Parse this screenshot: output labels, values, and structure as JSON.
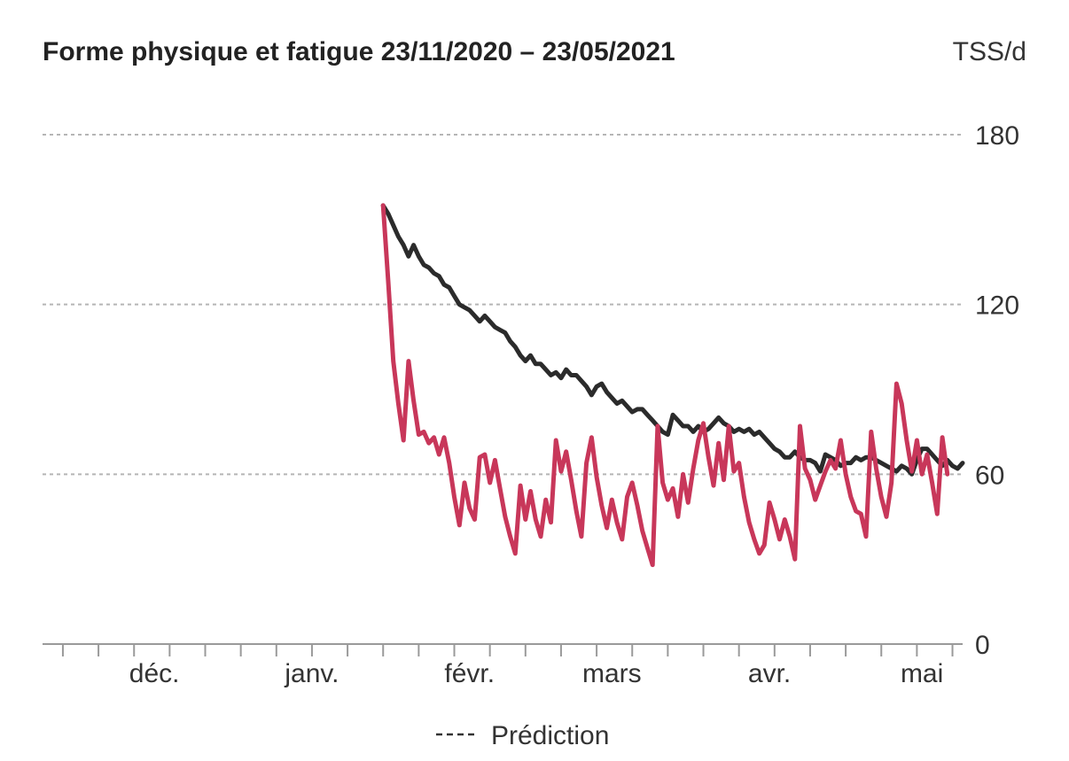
{
  "chart_data": {
    "type": "line",
    "title": "Forme physique et fatigue 23/11/2020 – 23/05/2021",
    "unit": "TSS/d",
    "x_range": [
      "2020-11-23",
      "2021-05-23"
    ],
    "ylim": [
      0,
      180
    ],
    "y_ticks": [
      0,
      60,
      120,
      180
    ],
    "grid": true,
    "month_labels": [
      {
        "label": "déc.",
        "date": "2020-12-15"
      },
      {
        "label": "janv.",
        "date": "2021-01-15"
      },
      {
        "label": "févr.",
        "date": "2021-02-15"
      },
      {
        "label": "mars",
        "date": "2021-03-15"
      },
      {
        "label": "avr.",
        "date": "2021-04-15"
      },
      {
        "label": "mai",
        "date": "2021-05-15"
      }
    ],
    "week_tick_dates": [
      "2020-11-27",
      "2020-12-04",
      "2020-12-11",
      "2020-12-18",
      "2020-12-25",
      "2021-01-01",
      "2021-01-08",
      "2021-01-15",
      "2021-01-22",
      "2021-01-29",
      "2021-02-05",
      "2021-02-12",
      "2021-02-19",
      "2021-02-26",
      "2021-03-05",
      "2021-03-12",
      "2021-03-19",
      "2021-03-26",
      "2021-04-02",
      "2021-04-09",
      "2021-04-16",
      "2021-04-23",
      "2021-04-30",
      "2021-05-07",
      "2021-05-14",
      "2021-05-21"
    ],
    "legend": {
      "label": "Prédiction",
      "style": "dashed",
      "placement": "bottom-center"
    },
    "series": [
      {
        "color": "#2b2b2b",
        "points": [
          [
            "2021-01-29",
            155
          ],
          [
            "2021-01-30",
            152
          ],
          [
            "2021-01-31",
            148
          ],
          [
            "2021-02-01",
            144
          ],
          [
            "2021-02-02",
            141
          ],
          [
            "2021-02-03",
            137
          ],
          [
            "2021-02-04",
            141
          ],
          [
            "2021-02-05",
            137
          ],
          [
            "2021-02-06",
            134
          ],
          [
            "2021-02-07",
            133
          ],
          [
            "2021-02-08",
            131
          ],
          [
            "2021-02-09",
            130
          ],
          [
            "2021-02-10",
            127
          ],
          [
            "2021-02-11",
            126
          ],
          [
            "2021-02-12",
            123
          ],
          [
            "2021-02-13",
            120
          ],
          [
            "2021-02-14",
            119
          ],
          [
            "2021-02-15",
            118
          ],
          [
            "2021-02-16",
            116
          ],
          [
            "2021-02-17",
            114
          ],
          [
            "2021-02-18",
            116
          ],
          [
            "2021-02-19",
            114
          ],
          [
            "2021-02-20",
            112
          ],
          [
            "2021-02-21",
            111
          ],
          [
            "2021-02-22",
            110
          ],
          [
            "2021-02-23",
            107
          ],
          [
            "2021-02-24",
            105
          ],
          [
            "2021-02-25",
            102
          ],
          [
            "2021-02-26",
            100
          ],
          [
            "2021-02-27",
            102
          ],
          [
            "2021-02-28",
            99
          ],
          [
            "2021-03-01",
            99
          ],
          [
            "2021-03-02",
            97
          ],
          [
            "2021-03-03",
            95
          ],
          [
            "2021-03-04",
            96
          ],
          [
            "2021-03-05",
            94
          ],
          [
            "2021-03-06",
            97
          ],
          [
            "2021-03-07",
            95
          ],
          [
            "2021-03-08",
            95
          ],
          [
            "2021-03-09",
            93
          ],
          [
            "2021-03-10",
            91
          ],
          [
            "2021-03-11",
            88
          ],
          [
            "2021-03-12",
            91
          ],
          [
            "2021-03-13",
            92
          ],
          [
            "2021-03-14",
            89
          ],
          [
            "2021-03-15",
            87
          ],
          [
            "2021-03-16",
            85
          ],
          [
            "2021-03-17",
            86
          ],
          [
            "2021-03-18",
            84
          ],
          [
            "2021-03-19",
            82
          ],
          [
            "2021-03-20",
            83
          ],
          [
            "2021-03-21",
            83
          ],
          [
            "2021-03-22",
            81
          ],
          [
            "2021-03-23",
            79
          ],
          [
            "2021-03-24",
            77
          ],
          [
            "2021-03-25",
            75
          ],
          [
            "2021-03-26",
            74
          ],
          [
            "2021-03-27",
            81
          ],
          [
            "2021-03-28",
            79
          ],
          [
            "2021-03-29",
            77
          ],
          [
            "2021-03-30",
            77
          ],
          [
            "2021-03-31",
            75
          ],
          [
            "2021-04-01",
            77
          ],
          [
            "2021-04-02",
            75
          ],
          [
            "2021-04-03",
            76
          ],
          [
            "2021-04-04",
            78
          ],
          [
            "2021-04-05",
            80
          ],
          [
            "2021-04-06",
            78
          ],
          [
            "2021-04-07",
            77
          ],
          [
            "2021-04-08",
            75
          ],
          [
            "2021-04-09",
            76
          ],
          [
            "2021-04-10",
            75
          ],
          [
            "2021-04-11",
            76
          ],
          [
            "2021-04-12",
            74
          ],
          [
            "2021-04-13",
            75
          ],
          [
            "2021-04-14",
            73
          ],
          [
            "2021-04-15",
            71
          ],
          [
            "2021-04-16",
            69
          ],
          [
            "2021-04-17",
            68
          ],
          [
            "2021-04-18",
            66
          ],
          [
            "2021-04-19",
            66
          ],
          [
            "2021-04-20",
            68
          ],
          [
            "2021-04-21",
            66
          ],
          [
            "2021-04-22",
            65
          ],
          [
            "2021-04-23",
            65
          ],
          [
            "2021-04-24",
            64
          ],
          [
            "2021-04-25",
            61
          ],
          [
            "2021-04-26",
            67
          ],
          [
            "2021-04-27",
            66
          ],
          [
            "2021-04-28",
            65
          ],
          [
            "2021-04-29",
            63
          ],
          [
            "2021-04-30",
            64
          ],
          [
            "2021-05-01",
            64
          ],
          [
            "2021-05-02",
            66
          ],
          [
            "2021-05-03",
            65
          ],
          [
            "2021-05-04",
            66
          ],
          [
            "2021-05-05",
            66
          ],
          [
            "2021-05-06",
            65
          ],
          [
            "2021-05-07",
            64
          ],
          [
            "2021-05-08",
            63
          ],
          [
            "2021-05-09",
            62
          ],
          [
            "2021-05-10",
            61
          ],
          [
            "2021-05-11",
            63
          ],
          [
            "2021-05-12",
            62
          ],
          [
            "2021-05-13",
            60
          ],
          [
            "2021-05-14",
            65
          ],
          [
            "2021-05-15",
            69
          ],
          [
            "2021-05-16",
            69
          ],
          [
            "2021-05-17",
            67
          ],
          [
            "2021-05-18",
            65
          ],
          [
            "2021-05-19",
            63
          ],
          [
            "2021-05-20",
            65
          ],
          [
            "2021-05-21",
            63
          ],
          [
            "2021-05-22",
            62
          ],
          [
            "2021-05-23",
            64
          ]
        ]
      },
      {
        "color": "#c8375a",
        "points": [
          [
            "2021-01-29",
            155
          ],
          [
            "2021-01-30",
            128
          ],
          [
            "2021-01-31",
            100
          ],
          [
            "2021-02-01",
            85
          ],
          [
            "2021-02-02",
            72
          ],
          [
            "2021-02-03",
            100
          ],
          [
            "2021-02-04",
            86
          ],
          [
            "2021-02-05",
            74
          ],
          [
            "2021-02-06",
            75
          ],
          [
            "2021-02-07",
            71
          ],
          [
            "2021-02-08",
            73
          ],
          [
            "2021-02-09",
            67
          ],
          [
            "2021-02-10",
            73
          ],
          [
            "2021-02-11",
            64
          ],
          [
            "2021-02-12",
            52
          ],
          [
            "2021-02-13",
            42
          ],
          [
            "2021-02-14",
            57
          ],
          [
            "2021-02-15",
            48
          ],
          [
            "2021-02-16",
            44
          ],
          [
            "2021-02-17",
            66
          ],
          [
            "2021-02-18",
            67
          ],
          [
            "2021-02-19",
            57
          ],
          [
            "2021-02-20",
            65
          ],
          [
            "2021-02-21",
            55
          ],
          [
            "2021-02-22",
            45
          ],
          [
            "2021-02-23",
            38
          ],
          [
            "2021-02-24",
            32
          ],
          [
            "2021-02-25",
            56
          ],
          [
            "2021-02-26",
            44
          ],
          [
            "2021-02-27",
            54
          ],
          [
            "2021-02-28",
            44
          ],
          [
            "2021-03-01",
            38
          ],
          [
            "2021-03-02",
            51
          ],
          [
            "2021-03-03",
            43
          ],
          [
            "2021-03-04",
            72
          ],
          [
            "2021-03-05",
            61
          ],
          [
            "2021-03-06",
            68
          ],
          [
            "2021-03-07",
            58
          ],
          [
            "2021-03-08",
            47
          ],
          [
            "2021-03-09",
            38
          ],
          [
            "2021-03-10",
            64
          ],
          [
            "2021-03-11",
            73
          ],
          [
            "2021-03-12",
            59
          ],
          [
            "2021-03-13",
            49
          ],
          [
            "2021-03-14",
            41
          ],
          [
            "2021-03-15",
            51
          ],
          [
            "2021-03-16",
            43
          ],
          [
            "2021-03-17",
            37
          ],
          [
            "2021-03-18",
            52
          ],
          [
            "2021-03-19",
            57
          ],
          [
            "2021-03-20",
            49
          ],
          [
            "2021-03-21",
            40
          ],
          [
            "2021-03-22",
            34
          ],
          [
            "2021-03-23",
            28
          ],
          [
            "2021-03-24",
            77
          ],
          [
            "2021-03-25",
            57
          ],
          [
            "2021-03-26",
            51
          ],
          [
            "2021-03-27",
            55
          ],
          [
            "2021-03-28",
            45
          ],
          [
            "2021-03-29",
            60
          ],
          [
            "2021-03-30",
            50
          ],
          [
            "2021-03-31",
            62
          ],
          [
            "2021-04-01",
            72
          ],
          [
            "2021-04-02",
            78
          ],
          [
            "2021-04-03",
            66
          ],
          [
            "2021-04-04",
            56
          ],
          [
            "2021-04-05",
            71
          ],
          [
            "2021-04-06",
            58
          ],
          [
            "2021-04-07",
            77
          ],
          [
            "2021-04-08",
            61
          ],
          [
            "2021-04-09",
            64
          ],
          [
            "2021-04-10",
            52
          ],
          [
            "2021-04-11",
            43
          ],
          [
            "2021-04-12",
            37
          ],
          [
            "2021-04-13",
            32
          ],
          [
            "2021-04-14",
            35
          ],
          [
            "2021-04-15",
            50
          ],
          [
            "2021-04-16",
            44
          ],
          [
            "2021-04-17",
            37
          ],
          [
            "2021-04-18",
            44
          ],
          [
            "2021-04-19",
            38
          ],
          [
            "2021-04-20",
            30
          ],
          [
            "2021-04-21",
            77
          ],
          [
            "2021-04-22",
            62
          ],
          [
            "2021-04-23",
            58
          ],
          [
            "2021-04-24",
            51
          ],
          [
            "2021-04-25",
            56
          ],
          [
            "2021-04-26",
            61
          ],
          [
            "2021-04-27",
            65
          ],
          [
            "2021-04-28",
            62
          ],
          [
            "2021-04-29",
            72
          ],
          [
            "2021-04-30",
            60
          ],
          [
            "2021-05-01",
            52
          ],
          [
            "2021-05-02",
            47
          ],
          [
            "2021-05-03",
            46
          ],
          [
            "2021-05-04",
            38
          ],
          [
            "2021-05-05",
            75
          ],
          [
            "2021-05-06",
            62
          ],
          [
            "2021-05-07",
            52
          ],
          [
            "2021-05-08",
            45
          ],
          [
            "2021-05-09",
            57
          ],
          [
            "2021-05-10",
            92
          ],
          [
            "2021-05-11",
            85
          ],
          [
            "2021-05-12",
            72
          ],
          [
            "2021-05-13",
            61
          ],
          [
            "2021-05-14",
            72
          ],
          [
            "2021-05-15",
            60
          ],
          [
            "2021-05-16",
            67
          ],
          [
            "2021-05-17",
            57
          ],
          [
            "2021-05-18",
            46
          ],
          [
            "2021-05-19",
            73
          ],
          [
            "2021-05-20",
            60
          ]
        ]
      }
    ]
  }
}
